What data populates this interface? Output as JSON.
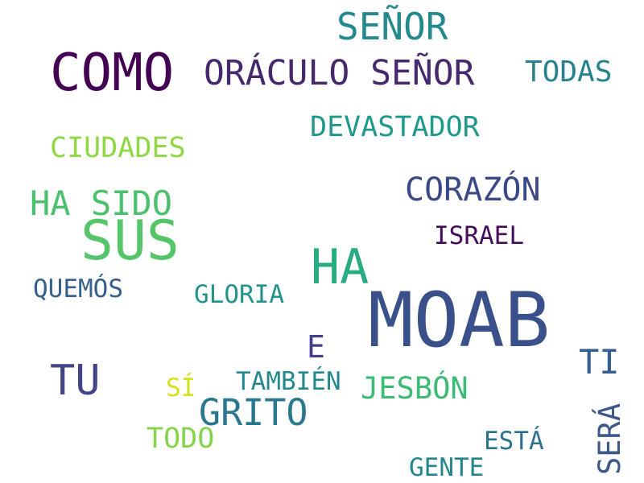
{
  "words": [
    {
      "text": "SEÑOR",
      "color": "#23898e"
    },
    {
      "text": "COMO",
      "color": "#440154"
    },
    {
      "text": "ORÁCULO SEÑOR",
      "color": "#46286d"
    },
    {
      "text": "TODAS",
      "color": "#26828e"
    },
    {
      "text": "DEVASTADOR",
      "color": "#1f9a8a"
    },
    {
      "text": "CIUDADES",
      "color": "#8fd744"
    },
    {
      "text": "CORAZÓN",
      "color": "#3b4a86"
    },
    {
      "text": "HA SIDO",
      "color": "#4ac16d"
    },
    {
      "text": "SUS",
      "color": "#54c568"
    },
    {
      "text": "ISRAEL",
      "color": "#450d5b"
    },
    {
      "text": "HA",
      "color": "#27ad81"
    },
    {
      "text": "QUEMÓS",
      "color": "#355f8d"
    },
    {
      "text": "GLORIA",
      "color": "#22928c"
    },
    {
      "text": "MOAB",
      "color": "#3a508b"
    },
    {
      "text": "E",
      "color": "#433e85"
    },
    {
      "text": "TI",
      "color": "#355f8d"
    },
    {
      "text": "TU",
      "color": "#414487"
    },
    {
      "text": "SÍ",
      "color": "#d3e21c"
    },
    {
      "text": "TAMBIÉN",
      "color": "#23898e"
    },
    {
      "text": "JESBÓN",
      "color": "#3bbb75"
    },
    {
      "text": "GRITO",
      "color": "#2a788e"
    },
    {
      "text": "SERÁ",
      "color": "#3d5889"
    },
    {
      "text": "TODO",
      "color": "#84d44b"
    },
    {
      "text": "ESTÁ",
      "color": "#2c718e"
    },
    {
      "text": "GENTE",
      "color": "#25858e"
    }
  ]
}
